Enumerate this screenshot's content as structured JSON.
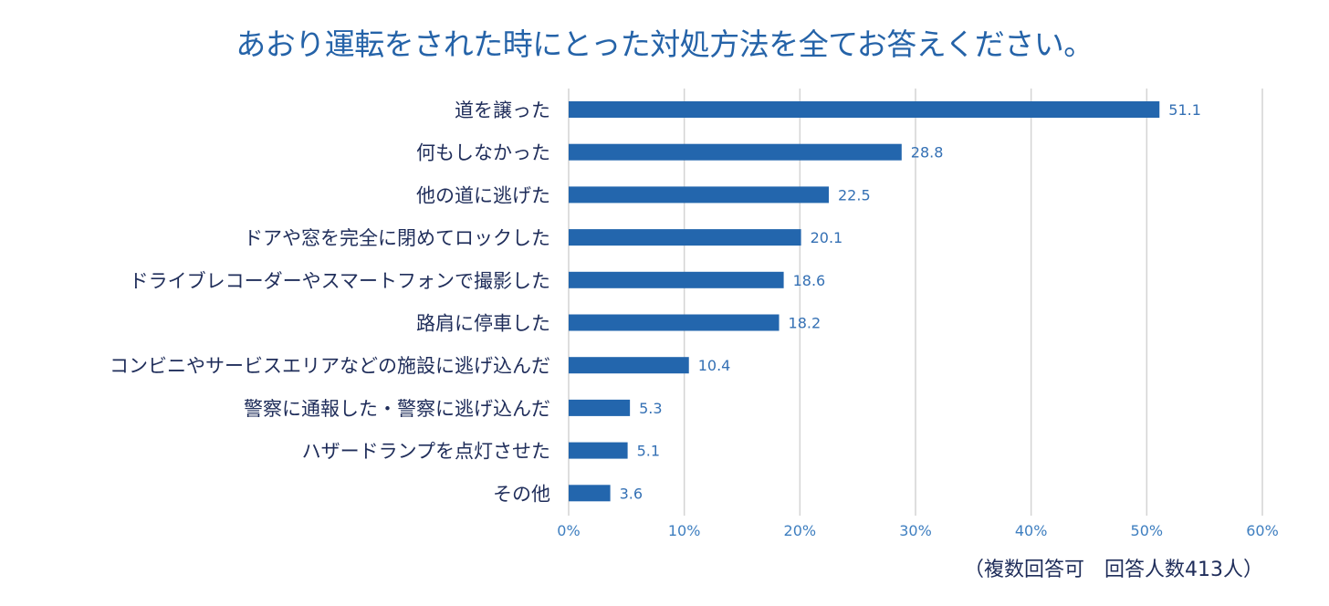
{
  "chart_data": {
    "type": "bar",
    "orientation": "horizontal",
    "title": "あおり運転をされた時にとった対処方法を全てお答えください。",
    "categories": [
      "道を譲った",
      "何もしなかった",
      "他の道に逃げた",
      "ドアや窓を完全に閉めてロックした",
      "ドライブレコーダーやスマートフォンで撮影した",
      "路肩に停車した",
      "コンビニやサービスエリアなどの施設に逃げ込んだ",
      "警察に通報した・警察に逃げ込んだ",
      "ハザードランプを点灯させた",
      "その他"
    ],
    "values": [
      51.1,
      28.8,
      22.5,
      20.1,
      18.6,
      18.2,
      10.4,
      5.3,
      5.1,
      3.6
    ],
    "data_labels": [
      "51.1",
      "28.8",
      "22.5",
      "20.1",
      "18.6",
      "18.2",
      "10.4",
      "5.3",
      "5.1",
      "3.6"
    ],
    "xlim": [
      0,
      60
    ],
    "xticks": [
      0,
      10,
      20,
      30,
      40,
      50,
      60
    ],
    "xtick_labels": [
      "0%",
      "10%",
      "20%",
      "30%",
      "40%",
      "50%",
      "60%"
    ],
    "xlabel": "",
    "ylabel": "",
    "grid": true,
    "legend": "none",
    "note": "（複数回答可　回答人数413人）",
    "colors": {
      "bar": "#2366ad",
      "title": "#2563a8",
      "category_label": "#1f2d5a",
      "value_label": "#3470b4",
      "tick_label": "#3f7fc0",
      "grid": "#d4d4d4"
    }
  }
}
